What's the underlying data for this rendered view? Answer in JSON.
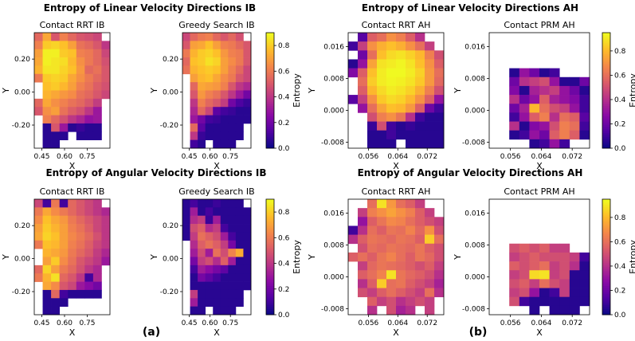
{
  "row_titles": [
    "Entropy of Linear Velocity Directions IB",
    "Entropy of Linear Velocity Directions AH",
    "Entropy of Angular Velocity Directions IB",
    "Entropy of Angular Velocity Directions AH"
  ],
  "panel_labels": [
    "(a)",
    "(b)"
  ],
  "colorbar_label": "Entropy",
  "colormap": [
    "#0d0887",
    "#5302a3",
    "#8b0aa5",
    "#b83289",
    "#db5c68",
    "#f48849",
    "#febc2a",
    "#f0f921"
  ],
  "chart_data": [
    {
      "type": "heatmap",
      "title": "Contact RRT IB",
      "xlabel": "X",
      "ylabel": "Y",
      "xlim": [
        0.4,
        0.9
      ],
      "ylim": [
        -0.34,
        0.36
      ],
      "xticks": [
        "0.45",
        "0.60",
        "0.75"
      ],
      "xtick_values": [
        0.45,
        0.6,
        0.75
      ],
      "yticks": [
        "0.20",
        "0.00",
        "-0.20"
      ],
      "ytick_values": [
        0.2,
        0.0,
        -0.2
      ],
      "clim": [
        0,
        0.9
      ],
      "cbar_ticks": [
        "0.0",
        "0.2",
        "0.4",
        "0.6",
        "0.8"
      ],
      "cbar_tick_values": [
        0,
        0.2,
        0.4,
        0.6,
        0.8
      ],
      "z": [
        "0.55,0.72,0.50,0.62,0.55,0.50,0.48,0.45,",
        "0.62,0.80,0.82,0.78,0.70,0.58,0.55,0.50,0.40",
        "0.70,0.88,0.88,0.80,0.78,0.62,0.60,0.55,0.45",
        "0.72,0.88,0.86,0.84,0.76,0.66,0.60,0.55,0.48",
        "0.75,0.86,0.86,0.82,0.78,0.68,0.55,0.58,0.50",
        "0.60,0.80,0.82,0.80,0.72,0.66,0.60,0.55,0.50",
        ",0.78,0.80,0.76,0.70,0.62,0.58,0.52,0.48",
        ",0.75,0.72,0.68,0.65,0.58,0.55,0.50,0.45",
        "0.55,0.72,0.66,0.62,0.58,0.55,0.50,0.42,",
        "0.50,0.66,0.70,0.58,0.52,0.48,0.40,0.30,",
        ",0.62,0.55,0.48,0.40,0.35,0.28,0.30,",
        ",0.05,0.50,0.30,0.05,0.08,0.05,0.05,",
        ",0.05,0.05,0.05,,0.05,0.05,0.05,",
        ",0.05,0.05,,,,,,"
      ]
    },
    {
      "type": "heatmap",
      "title": "Greedy Search IB",
      "xlabel": "X",
      "ylabel": "Y",
      "xlim": [
        0.4,
        0.9
      ],
      "ylim": [
        -0.34,
        0.36
      ],
      "xticks": [
        "0.45",
        "0.60",
        "0.75"
      ],
      "xtick_values": [
        0.45,
        0.6,
        0.75
      ],
      "yticks": [
        "0.20",
        "0.00",
        "-0.20"
      ],
      "ytick_values": [
        0.2,
        0.0,
        -0.2
      ],
      "clim": [
        0,
        0.9
      ],
      "cbar_ticks": [
        "0.0",
        "0.2",
        "0.4",
        "0.6",
        "0.8"
      ],
      "cbar_tick_values": [
        0,
        0.2,
        0.4,
        0.6,
        0.8
      ],
      "z": [
        "0.45,0.55,0.60,0.62,0.55,0.50,0.55,0.48,",
        "0.50,0.70,0.72,0.78,0.70,0.62,0.60,0.55,0.50",
        "0.60,0.75,0.80,0.82,0.78,0.68,0.62,0.60,0.50",
        "0.55,0.78,0.80,0.85,0.82,0.70,0.65,0.60,0.50",
        "0.58,0.75,0.78,0.80,0.78,0.70,0.62,0.55,0.45",
        ",0.70,0.76,0.78,0.72,0.65,0.60,0.50,0.45",
        ",0.55,0.72,0.70,0.68,0.62,0.50,0.40,0.35",
        ",0.50,0.68,0.62,0.58,0.50,0.40,0.30,0.20",
        ",0.40,0.62,0.55,0.50,0.42,0.20,0.12,0.08",
        ",0.35,0.55,0.45,0.15,0.10,0.08,0.05,0.05",
        ",0.30,0.20,0.10,0.08,0.05,0.05,0.05,0.05",
        ",0.55,0.15,0.05,0.05,0.05,0.05,0.05,",
        ",0.40,0.08,0.05,0.05,0.05,0.05,0.05,",
        ",0.10,0.05,,0.05,0.05,0.05,,"
      ]
    },
    {
      "type": "heatmap",
      "title": "Contact RRT AH",
      "xlabel": "X",
      "ylabel": "Y",
      "xlim": [
        0.0505,
        0.0765
      ],
      "ylim": [
        -0.0095,
        0.0195
      ],
      "xticks": [
        "0.056",
        "0.064",
        "0.072"
      ],
      "xtick_values": [
        0.056,
        0.064,
        0.072
      ],
      "yticks": [
        "0.016",
        "0.008",
        "0.000",
        "-0.008"
      ],
      "ytick_values": [
        0.016,
        0.008,
        0.0,
        -0.008
      ],
      "clim": [
        0,
        0.95
      ],
      "cbar_ticks": [
        "0.0",
        "0.2",
        "0.4",
        "0.6",
        "0.8"
      ],
      "cbar_tick_values": [
        0,
        0.2,
        0.4,
        0.6,
        0.8
      ],
      "z": [
        ",0.15,0.55,0.60,0.70,0.65,0.55,0.40,,",
        "0.10,0.45,0.70,0.78,0.82,0.78,0.70,0.60,0.45,",
        ",0.20,0.60,0.82,0.88,0.90,0.86,0.80,0.65,0.50",
        "0.05,0.30,0.75,0.90,0.92,0.94,0.90,0.82,0.70,0.55",
        "0.25,0.55,0.82,0.92,0.95,0.95,0.92,0.86,0.72,0.60",
        ",0.60,0.85,0.92,0.94,0.93,0.90,0.84,0.72,0.58",
        ",0.55,0.80,0.88,0.92,0.90,0.86,0.78,0.65,0.50",
        "0.15,0.45,0.70,0.84,0.88,0.86,0.80,0.70,0.55,0.30",
        ",0.30,0.60,0.75,0.82,0.80,0.72,0.55,0.20,0.10",
        ",,0.50,0.65,0.70,0.62,0.40,0.10,0.05,0.05",
        ",,0.08,0.50,0.10,0.05,0.08,0.05,0.05,0.05",
        ",,0.05,0.05,0.10,0.05,0.05,0.05,0.05,0.05",
        ",,0.05,0.05,0.05,,0.05,0.05,0.05,0.05"
      ]
    },
    {
      "type": "heatmap",
      "title": "Contact PRM AH",
      "xlabel": "X",
      "ylabel": "Y",
      "xlim": [
        0.0505,
        0.0765
      ],
      "ylim": [
        -0.0095,
        0.0195
      ],
      "xticks": [
        "0.056",
        "0.064",
        "0.072"
      ],
      "xtick_values": [
        0.056,
        0.064,
        0.072
      ],
      "yticks": [
        "0.016",
        "0.008",
        "0.000",
        "-0.008"
      ],
      "ytick_values": [
        0.016,
        0.008,
        0.0,
        -0.008
      ],
      "clim": [
        0,
        0.95
      ],
      "cbar_ticks": [
        "0.0",
        "0.2",
        "0.4",
        "0.6",
        "0.8"
      ],
      "cbar_tick_values": [
        0,
        0.2,
        0.4,
        0.6,
        0.8
      ],
      "z": [
        ",,,,,,,,,",
        ",,,,,,,,,",
        ",,,,,,,,,",
        ",,,,,,,,,",
        ",,0.05,0.30,0.20,0.05,0.10,,,",
        ",,0.20,0.40,0.45,0.50,0.30,0.05,0.05,0.20",
        ",,0.25,0.05,0.35,0.40,0.45,0.30,0.20,0.05",
        ",,0.40,0.20,0.30,0.55,0.35,0.30,0.25,0.10",
        ",,0.20,0.35,0.80,0.60,0.50,0.45,0.30,0.10",
        ",,0.10,0.30,0.55,0.65,0.40,0.60,0.55,0.15",
        ",,0.40,0.05,0.25,0.30,0.50,0.65,0.60,0.10",
        ",,0.05,0.10,0.30,0.20,0.55,0.65,0.55,0.05",
        ",,,,0.05,0.10,0.30,0.10,,"
      ]
    },
    {
      "type": "heatmap",
      "title": "Contact RRT IB",
      "xlabel": "X",
      "ylabel": "Y",
      "xlim": [
        0.4,
        0.9
      ],
      "ylim": [
        -0.34,
        0.36
      ],
      "xticks": [
        "0.45",
        "0.60",
        "0.75"
      ],
      "xtick_values": [
        0.45,
        0.6,
        0.75
      ],
      "yticks": [
        "0.20",
        "0.00",
        "-0.20"
      ],
      "ytick_values": [
        0.2,
        0.0,
        -0.2
      ],
      "clim": [
        0,
        0.9
      ],
      "cbar_ticks": [
        "0.0",
        "0.2",
        "0.4",
        "0.6",
        "0.8"
      ],
      "cbar_tick_values": [
        0,
        0.2,
        0.4,
        0.6,
        0.8
      ],
      "z": [
        "0.45,0.10,0.60,0.10,0.55,0.50,0.45,0.40,",
        "0.60,0.72,0.65,0.60,0.55,0.50,0.45,0.40,0.35",
        "0.65,0.78,0.72,0.68,0.60,0.55,0.50,0.45,0.40",
        "0.70,0.80,0.75,0.70,0.62,0.58,0.52,0.45,0.40",
        "0.72,0.82,0.78,0.70,0.64,0.60,0.55,0.48,0.40",
        "0.60,0.78,0.76,0.70,0.62,0.58,0.52,0.45,0.40",
        ",0.75,0.72,0.68,0.60,0.55,0.50,0.42,0.35",
        ",0.70,0.80,0.65,0.58,0.50,0.45,0.40,0.30",
        "0.55,0.82,0.70,0.60,0.55,0.48,0.40,0.35,",
        "0.60,0.75,0.85,0.55,0.50,0.40,0.10,0.35,",
        ",0.72,0.65,0.50,0.45,0.30,0.25,0.20,",
        ",0.05,0.55,0.10,0.05,0.05,0.05,0.05,",
        ",0.05,0.05,0.05,,,,,",
        ",0.05,0.05,,,,,,"
      ]
    },
    {
      "type": "heatmap",
      "title": "Greedy Search IB",
      "xlabel": "X",
      "ylabel": "Y",
      "xlim": [
        0.4,
        0.9
      ],
      "ylim": [
        -0.34,
        0.36
      ],
      "xticks": [
        "0.45",
        "0.60",
        "0.75"
      ],
      "xtick_values": [
        0.45,
        0.6,
        0.75
      ],
      "yticks": [
        "0.20",
        "0.00",
        "-0.20"
      ],
      "ytick_values": [
        0.2,
        0.0,
        -0.2
      ],
      "clim": [
        0,
        0.86
      ],
      "cbar_ticks": [
        "0.0",
        "0.2",
        "0.4",
        "0.6",
        "0.8"
      ],
      "cbar_tick_values": [
        0,
        0.2,
        0.4,
        0.6,
        0.8
      ],
      "z": [
        "0.05,0.10,0.05,0.05,0.08,0.05,0.05,0.05,",
        "0.05,0.30,0.05,0.10,0.05,0.05,0.05,0.05,0.05",
        "0.05,0.35,0.40,0.08,0.30,0.05,0.05,0.05,0.05",
        "0.05,0.45,0.50,0.35,0.40,0.10,0.05,0.05,0.05",
        "0.05,0.40,0.55,0.50,0.45,0.30,0.10,0.05,0.05",
        ",0.35,0.50,0.55,0.50,0.40,0.20,0.05,0.05",
        ",0.30,0.45,0.30,0.55,0.45,0.60,0.70,0.05",
        ",0.20,0.40,0.45,0.35,0.50,0.30,0.05,0.05",
        ",0.10,0.30,0.25,0.20,0.15,0.05,0.05,0.05",
        ",0.05,0.20,0.15,0.10,0.05,0.05,0.05,0.05",
        ",0.05,0.05,0.05,0.05,0.05,0.05,0.05,0.05",
        ",0.40,0.05,0.05,0.05,0.05,0.05,0.05,",
        ",0.30,0.05,0.05,0.05,0.05,0.05,0.05,",
        ",0.05,0.05,,0.05,0.05,0.05,,"
      ]
    },
    {
      "type": "heatmap",
      "title": "Contact RRT AH",
      "xlabel": "X",
      "ylabel": "Y",
      "xlim": [
        0.0505,
        0.0765
      ],
      "ylim": [
        -0.0095,
        0.0195
      ],
      "xticks": [
        "0.056",
        "0.064",
        "0.072"
      ],
      "xtick_values": [
        0.056,
        0.064,
        0.072
      ],
      "yticks": [
        "0.016",
        "0.008",
        "0.000",
        "-0.008"
      ],
      "ytick_values": [
        0.016,
        0.008,
        0.0,
        -0.008
      ],
      "clim": [
        0,
        0.95
      ],
      "cbar_ticks": [
        "0.0",
        "0.2",
        "0.4",
        "0.6",
        "0.8"
      ],
      "cbar_tick_values": [
        0,
        0.2,
        0.4,
        0.6,
        0.8
      ],
      "z": [
        ",,0.60,0.90,0.72,0.60,0.55,0.45,,",
        ",0.45,0.65,0.70,0.75,0.70,0.65,0.55,0.45,",
        ",0.30,0.55,0.62,0.68,0.66,0.60,0.55,0.50,0.45",
        "0.10,0.40,0.60,0.55,0.62,0.60,0.66,0.58,0.70,0.50",
        "0.40,0.55,0.62,0.60,0.58,0.62,0.60,0.55,0.85,0.60",
        ",0.50,0.60,0.58,0.62,0.60,0.58,0.62,0.55,0.50",
        "0.55,0.60,0.55,0.62,0.66,0.60,0.55,0.62,0.58,0.50",
        ",0.45,0.58,0.62,0.60,0.58,0.55,0.50,0.55,0.45",
        ",0.55,0.60,0.66,0.90,0.62,0.58,0.55,0.50,0.40",
        ",0.40,0.55,0.85,0.60,0.62,0.55,0.50,0.45,0.35",
        ",0.50,0.45,0.55,0.60,0.55,0.50,0.45,0.60,0.40",
        ",,0.55,0.45,0.50,0.40,0.45,0.50,0.45,",
        ",,0.40,,0.50,0.35,0.40,,0.45,"
      ]
    },
    {
      "type": "heatmap",
      "title": "Contact PRM AH",
      "xlabel": "X",
      "ylabel": "Y",
      "xlim": [
        0.0505,
        0.0765
      ],
      "ylim": [
        -0.0095,
        0.0195
      ],
      "xticks": [
        "0.056",
        "0.064",
        "0.072"
      ],
      "xtick_values": [
        0.056,
        0.064,
        0.072
      ],
      "yticks": [
        "0.016",
        "0.008",
        "0.000",
        "-0.008"
      ],
      "ytick_values": [
        0.016,
        0.008,
        0.0,
        -0.008
      ],
      "clim": [
        0,
        0.95
      ],
      "cbar_ticks": [
        "0.0",
        "0.2",
        "0.4",
        "0.6",
        "0.8"
      ],
      "cbar_tick_values": [
        0,
        0.2,
        0.4,
        0.6,
        0.8
      ],
      "z": [
        ",,,,,,,,,",
        ",,,,,,,,,",
        ",,,,,,,,,",
        ",,,,,,,,,",
        ",,,,,,,,,",
        ",,0.50,0.55,0.50,0.55,0.45,0.45,,",
        ",,0.45,0.50,0.55,0.50,0.50,0.50,0.45,0.10",
        ",,0.55,0.50,0.55,0.60,0.45,0.50,0.40,0.05",
        ",,0.45,0.50,0.88,0.90,0.45,0.50,0.05,0.05",
        ",,0.50,0.55,0.45,0.60,0.50,0.45,0.05,0.05",
        ",,0.45,0.50,0.30,0.05,0.10,0.45,0.05,0.05",
        ",,0.50,0.10,0.05,0.05,0.05,0.05,0.05,0.05",
        ",,,,0.05,,0.05,0.05,0.05,"
      ]
    }
  ]
}
